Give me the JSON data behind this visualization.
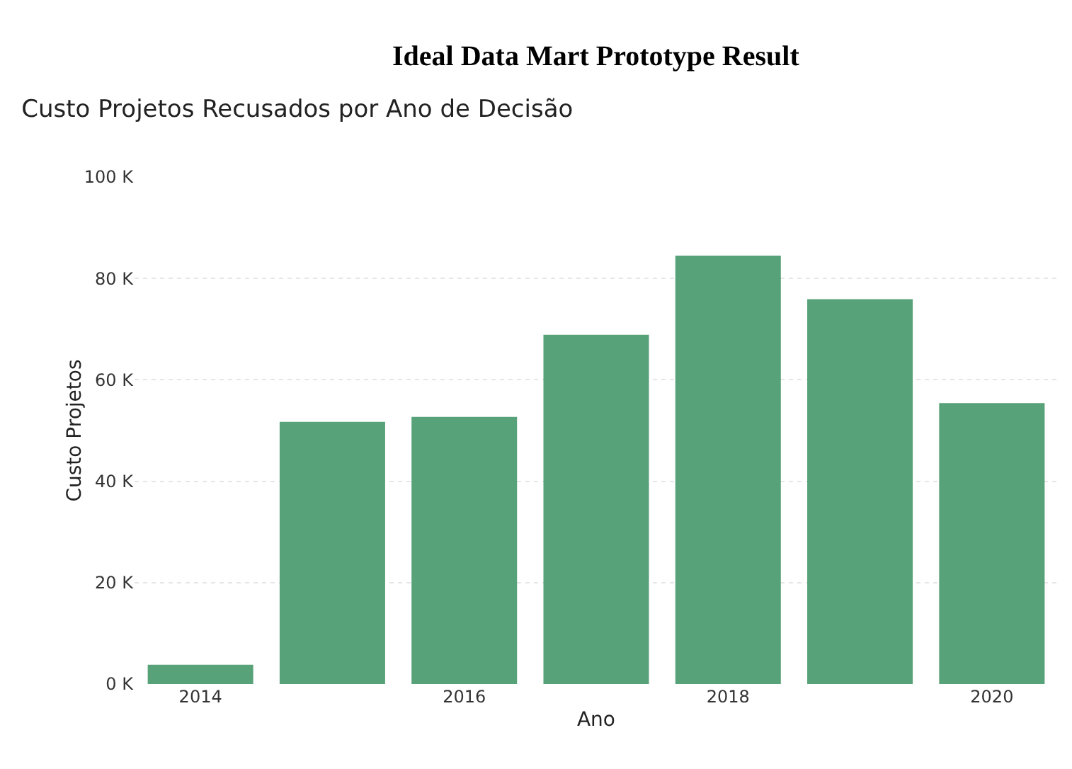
{
  "chart_data": {
    "type": "bar",
    "title": "Ideal Data Mart Prototype Result",
    "subtitle": "Custo Projetos Recusados por Ano de Decisão",
    "xlabel": "Ano",
    "ylabel": "Custo Projetos",
    "x": [
      2014,
      2015,
      2016,
      2017,
      2018,
      2019,
      2020
    ],
    "values": [
      3800,
      51700,
      52700,
      68900,
      84500,
      75900,
      55400
    ],
    "color": "#58a279",
    "xlim": [
      2013.5,
      2020.5
    ],
    "xticks": [
      2014,
      2016,
      2018,
      2020
    ],
    "ylim": [
      0,
      100000
    ],
    "yticks": [
      {
        "value": 0,
        "label": "0 K"
      },
      {
        "value": 20000,
        "label": "20 K"
      },
      {
        "value": 40000,
        "label": "40 K"
      },
      {
        "value": 60000,
        "label": "60 K"
      },
      {
        "value": 80000,
        "label": "80 K"
      },
      {
        "value": 100000,
        "label": "100 K"
      }
    ],
    "grid": "y"
  }
}
